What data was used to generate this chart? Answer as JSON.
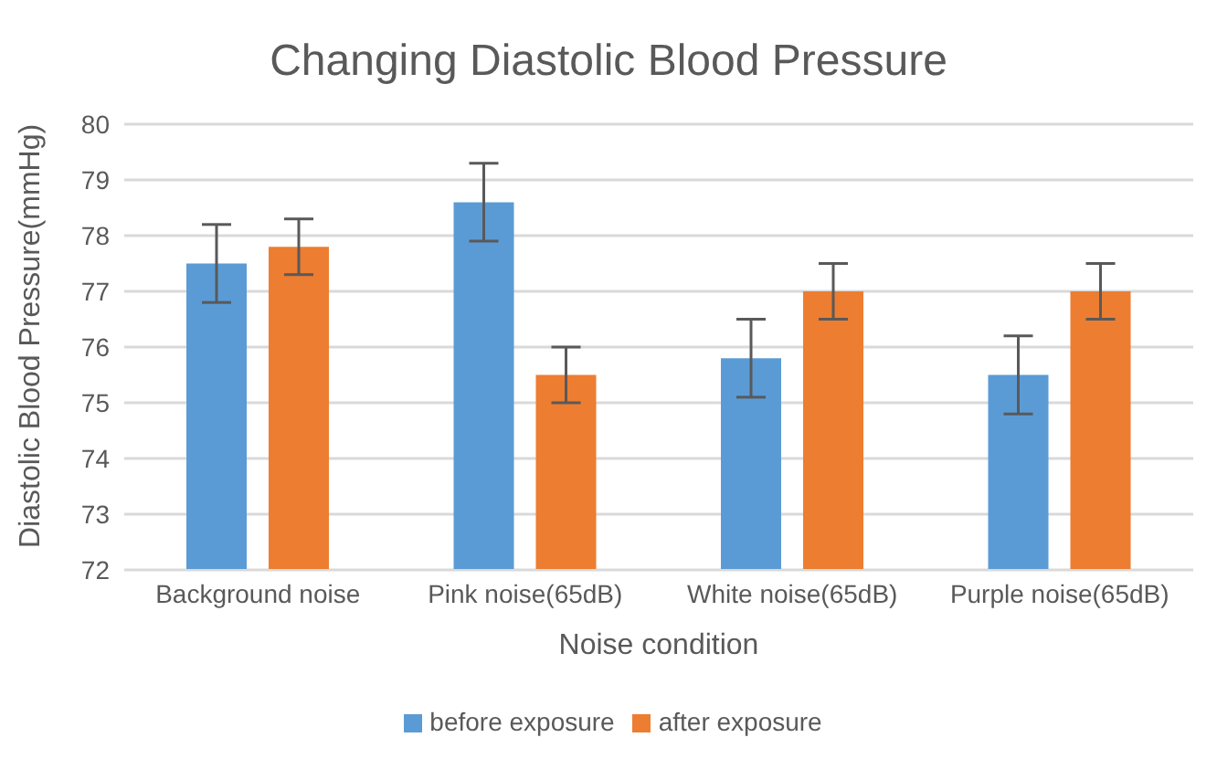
{
  "chart_data": {
    "type": "bar",
    "title": "Changing Diastolic Blood Pressure",
    "xlabel": "Noise condition",
    "ylabel": "Diastolic Blood Pressure(mmHg)",
    "categories": [
      "Background noise",
      "Pink noise(65dB)",
      "White noise(65dB)",
      "Purple noise(65dB)"
    ],
    "series": [
      {
        "name": "before exposure",
        "color": "#5b9bd5",
        "values": [
          77.5,
          78.6,
          75.8,
          75.5
        ],
        "errors": [
          0.7,
          0.7,
          0.7,
          0.7
        ]
      },
      {
        "name": "after exposure",
        "color": "#ed7d31",
        "values": [
          77.8,
          75.5,
          77.0,
          77.0
        ],
        "errors": [
          0.5,
          0.5,
          0.5,
          0.5
        ]
      }
    ],
    "ylim": [
      72,
      80
    ],
    "yticks": [
      72,
      73,
      74,
      75,
      76,
      77,
      78,
      79,
      80
    ],
    "grid": "y",
    "legend": "bottom"
  }
}
